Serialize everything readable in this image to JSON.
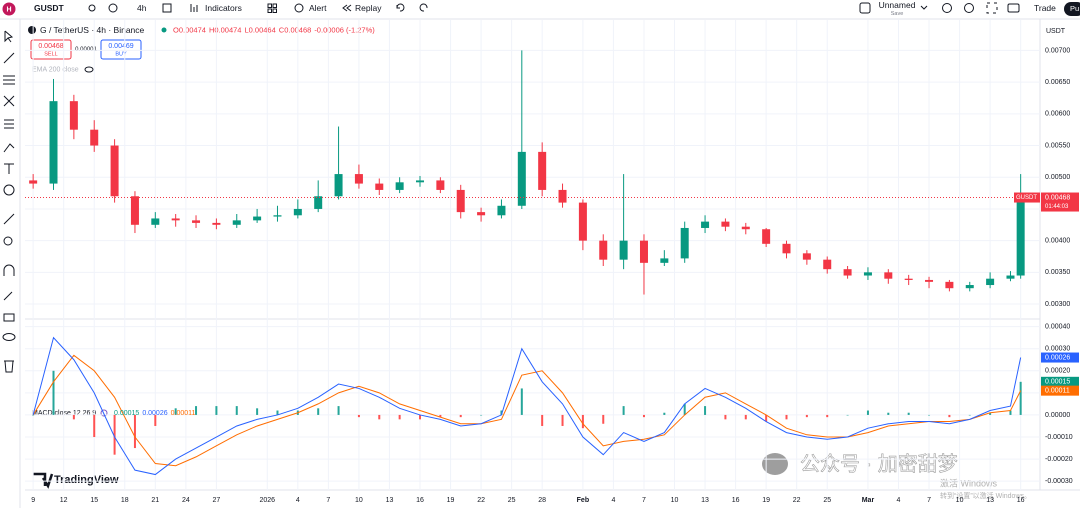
{
  "toolbar": {
    "avatar": "H",
    "symbol": "GUSDT",
    "interval": "4h",
    "indicators": "Indicators",
    "alert": "Alert",
    "replay": "Replay",
    "layout_name": "Unnamed",
    "layout_status": "Save",
    "trade": "Trade",
    "publish": "Pu"
  },
  "legend": {
    "title": "G / TetherUS · 4h · Binance",
    "ohlc": [
      "O0.00474",
      "H0.00474",
      "L0.00464",
      "C0.00468",
      "-0.00006 (-1.27%)"
    ],
    "sell_price": "0.00468",
    "sell": "SELL",
    "spread": "0.00001",
    "buy_price": "0.00469",
    "buy": "BUY",
    "ema": "EMA 200 close",
    "macd": "MACD close 12 26 9"
  },
  "axis_currency": "USDT",
  "price_badge": {
    "symbol": "GUSDT",
    "countdown": "01:44:03"
  },
  "branding": "TradingView",
  "watermark": "公众号 · 加密甜梦",
  "activation": [
    "激活 Windows",
    "转到“设置”以激活 Windows。"
  ],
  "chart_data": [
    {
      "type": "candlestick",
      "up_color": "#089981",
      "down_color": "#f23645",
      "grid": true,
      "x": [
        0,
        2,
        4,
        6,
        8,
        10,
        12,
        14,
        16,
        18,
        20,
        22,
        24,
        26,
        28,
        30,
        32,
        34,
        36,
        38,
        40,
        42,
        44,
        46,
        48,
        50,
        52,
        54,
        56,
        58,
        60,
        62,
        64,
        66,
        68,
        70,
        72,
        74,
        76,
        78,
        80,
        82,
        84,
        86,
        88,
        90,
        92,
        94,
        96,
        97
      ],
      "open": [
        0.00495,
        0.0049,
        0.0062,
        0.00575,
        0.0055,
        0.0047,
        0.00425,
        0.00435,
        0.00432,
        0.00428,
        0.00425,
        0.00432,
        0.00438,
        0.0044,
        0.0045,
        0.0047,
        0.00505,
        0.0049,
        0.0048,
        0.00492,
        0.00495,
        0.0048,
        0.00445,
        0.0044,
        0.00455,
        0.0054,
        0.0048,
        0.0046,
        0.004,
        0.0037,
        0.004,
        0.00365,
        0.00372,
        0.0042,
        0.0043,
        0.00422,
        0.00418,
        0.00395,
        0.0038,
        0.0037,
        0.00355,
        0.00345,
        0.0035,
        0.0034,
        0.00338,
        0.00335,
        0.00325,
        0.0033,
        0.0034,
        0.00345
      ],
      "high": [
        0.00505,
        0.00655,
        0.0063,
        0.0059,
        0.0056,
        0.00478,
        0.00445,
        0.00442,
        0.0044,
        0.00435,
        0.00442,
        0.0045,
        0.00455,
        0.00465,
        0.00495,
        0.0058,
        0.0052,
        0.00498,
        0.005,
        0.00502,
        0.005,
        0.00488,
        0.00452,
        0.00465,
        0.007,
        0.00555,
        0.0049,
        0.00465,
        0.0041,
        0.00505,
        0.0041,
        0.00385,
        0.0043,
        0.0044,
        0.00435,
        0.00428,
        0.0042,
        0.004,
        0.00385,
        0.00375,
        0.0036,
        0.00358,
        0.00355,
        0.00346,
        0.00343,
        0.00338,
        0.00335,
        0.0035,
        0.00352,
        0.00505
      ],
      "low": [
        0.00482,
        0.0048,
        0.0056,
        0.0054,
        0.0046,
        0.00412,
        0.0042,
        0.00422,
        0.0042,
        0.00418,
        0.0042,
        0.00428,
        0.0043,
        0.00435,
        0.00445,
        0.00465,
        0.00482,
        0.00472,
        0.00475,
        0.00485,
        0.00475,
        0.00435,
        0.0043,
        0.00435,
        0.0045,
        0.0047,
        0.00452,
        0.00385,
        0.0036,
        0.00355,
        0.00315,
        0.0036,
        0.00365,
        0.00412,
        0.00415,
        0.0041,
        0.0039,
        0.00372,
        0.00362,
        0.00348,
        0.0034,
        0.00338,
        0.00332,
        0.0033,
        0.00325,
        0.0032,
        0.0032,
        0.00325,
        0.00336,
        0.0034
      ],
      "close": [
        0.0049,
        0.0062,
        0.00575,
        0.0055,
        0.0047,
        0.00425,
        0.00435,
        0.00432,
        0.00428,
        0.00425,
        0.00432,
        0.00438,
        0.0044,
        0.0045,
        0.0047,
        0.00505,
        0.0049,
        0.0048,
        0.00492,
        0.00495,
        0.0048,
        0.00445,
        0.0044,
        0.00455,
        0.0054,
        0.0048,
        0.0046,
        0.004,
        0.0037,
        0.004,
        0.00365,
        0.00372,
        0.0042,
        0.0043,
        0.00422,
        0.00418,
        0.00395,
        0.0038,
        0.0037,
        0.00355,
        0.00345,
        0.0035,
        0.0034,
        0.00338,
        0.00335,
        0.00325,
        0.0033,
        0.0034,
        0.00345,
        0.00468
      ],
      "xlim": [
        -0.8,
        98.9
      ],
      "ylim": [
        0.00278,
        0.00748
      ],
      "yticks": [
        {
          "value": 0.003,
          "label": "0.00300"
        },
        {
          "value": 0.0035,
          "label": "0.00350"
        },
        {
          "value": 0.004,
          "label": "0.00400"
        },
        {
          "value": 0.0045,
          "label": "0.00450"
        },
        {
          "value": 0.005,
          "label": "0.00500"
        },
        {
          "value": 0.0055,
          "label": "0.00550"
        },
        {
          "value": 0.006,
          "label": "0.00600"
        },
        {
          "value": 0.0065,
          "label": "0.00650"
        },
        {
          "value": 0.007,
          "label": "0.00700"
        }
      ]
    },
    {
      "type": "macd",
      "grid": true,
      "x": [
        0,
        2,
        4,
        6,
        8,
        10,
        12,
        14,
        16,
        18,
        20,
        22,
        24,
        26,
        28,
        30,
        32,
        34,
        36,
        38,
        40,
        42,
        44,
        46,
        48,
        50,
        52,
        54,
        56,
        58,
        60,
        62,
        64,
        66,
        68,
        70,
        72,
        74,
        76,
        78,
        80,
        82,
        84,
        86,
        88,
        90,
        92,
        94,
        96,
        97
      ],
      "histogram": {
        "up_color": "#26a69a",
        "down_color": "#ff5252",
        "badge_color": "#089981",
        "values": [
          0,
          0.0002,
          -2e-05,
          -0.0001,
          -0.00018,
          -0.00015,
          -5e-05,
          3e-05,
          4e-05,
          4e-05,
          4e-05,
          3e-05,
          2e-05,
          2e-05,
          3e-05,
          4e-05,
          -1e-05,
          -2e-05,
          -2e-05,
          -2e-05,
          -1e-05,
          -1e-05,
          0,
          2e-05,
          0.00012,
          -5e-05,
          -5e-05,
          -6e-05,
          -4e-05,
          4e-05,
          -1e-05,
          1e-05,
          5e-05,
          4e-05,
          -2e-05,
          -2e-05,
          -3e-05,
          -2e-05,
          -1e-05,
          -1e-05,
          0,
          2e-05,
          1e-05,
          1e-05,
          0,
          -1e-05,
          0,
          1e-05,
          2e-05,
          0.00015
        ]
      },
      "macd": {
        "color": "#2962ff",
        "values": [
          0,
          0.00035,
          0.00025,
          0.0001,
          -0.0001,
          -0.00025,
          -0.00027,
          -0.0002,
          -0.00015,
          -0.0001,
          -5e-05,
          -2e-05,
          0,
          3e-05,
          8e-05,
          0.00014,
          0.00012,
          8e-05,
          3e-05,
          0,
          -2e-05,
          -5e-05,
          -4e-05,
          0,
          0.0003,
          0.00015,
          5e-05,
          -0.0001,
          -0.00018,
          -8e-05,
          -0.00012,
          -8e-05,
          5e-05,
          0.00012,
          8e-05,
          3e-05,
          -3e-05,
          -8e-05,
          -0.0001,
          -0.00011,
          -0.0001,
          -6e-05,
          -4e-05,
          -3e-05,
          -3e-05,
          -4e-05,
          -2e-05,
          2e-05,
          4e-05,
          0.00026
        ]
      },
      "signal": {
        "color": "#ff6d00",
        "values": [
          0,
          0.00015,
          0.00027,
          0.0002,
          8e-05,
          -0.0001,
          -0.00022,
          -0.00023,
          -0.00019,
          -0.00014,
          -9e-05,
          -5e-05,
          -2e-05,
          1e-05,
          5e-05,
          0.0001,
          0.00013,
          0.0001,
          5e-05,
          2e-05,
          -1e-05,
          -4e-05,
          -4e-05,
          -2e-05,
          0.00018,
          0.0002,
          0.0001,
          -4e-05,
          -0.00014,
          -0.00012,
          -0.00011,
          -9e-05,
          0,
          8e-05,
          0.0001,
          5e-05,
          0,
          -6e-05,
          -9e-05,
          -0.0001,
          -0.0001,
          -8e-05,
          -5e-05,
          -4e-05,
          -3e-05,
          -3e-05,
          -2e-05,
          1e-05,
          2e-05,
          0.00011
        ]
      },
      "xlim": [
        -0.8,
        98.9
      ],
      "ylim": [
        -0.00034,
        0.00043
      ],
      "yticks": [
        {
          "value": -0.0003,
          "label": "-0.00030"
        },
        {
          "value": -0.0002,
          "label": "-0.00020"
        },
        {
          "value": -0.0001,
          "label": "-0.00010"
        },
        {
          "value": 0,
          "label": "0.00000"
        },
        {
          "value": 0.0001,
          "label": "0.00010"
        },
        {
          "value": 0.0002,
          "label": "0.00020"
        },
        {
          "value": 0.0003,
          "label": "0.00030"
        },
        {
          "value": 0.0004,
          "label": "0.00040"
        }
      ],
      "xticks": [
        {
          "value": 0,
          "label": "9"
        },
        {
          "value": 3,
          "label": "12"
        },
        {
          "value": 6,
          "label": "15"
        },
        {
          "value": 9,
          "label": "18"
        },
        {
          "value": 12,
          "label": "21"
        },
        {
          "value": 15,
          "label": "24"
        },
        {
          "value": 18,
          "label": "27"
        },
        {
          "value": 23,
          "label": "2026"
        },
        {
          "value": 26,
          "label": "4"
        },
        {
          "value": 29,
          "label": "7"
        },
        {
          "value": 32,
          "label": "10"
        },
        {
          "value": 35,
          "label": "13"
        },
        {
          "value": 38,
          "label": "16"
        },
        {
          "value": 41,
          "label": "19"
        },
        {
          "value": 44,
          "label": "22"
        },
        {
          "value": 47,
          "label": "25"
        },
        {
          "value": 50,
          "label": "28"
        },
        {
          "value": 54,
          "label": "Feb"
        },
        {
          "value": 57,
          "label": "4"
        },
        {
          "value": 60,
          "label": "7"
        },
        {
          "value": 63,
          "label": "10"
        },
        {
          "value": 66,
          "label": "13"
        },
        {
          "value": 69,
          "label": "16"
        },
        {
          "value": 72,
          "label": "19"
        },
        {
          "value": 75,
          "label": "22"
        },
        {
          "value": 78,
          "label": "25"
        },
        {
          "value": 82,
          "label": "Mar"
        },
        {
          "value": 85,
          "label": "4"
        },
        {
          "value": 88,
          "label": "7"
        },
        {
          "value": 91,
          "label": "10"
        },
        {
          "value": 94,
          "label": "13"
        },
        {
          "value": 97,
          "label": "16"
        }
      ]
    }
  ]
}
